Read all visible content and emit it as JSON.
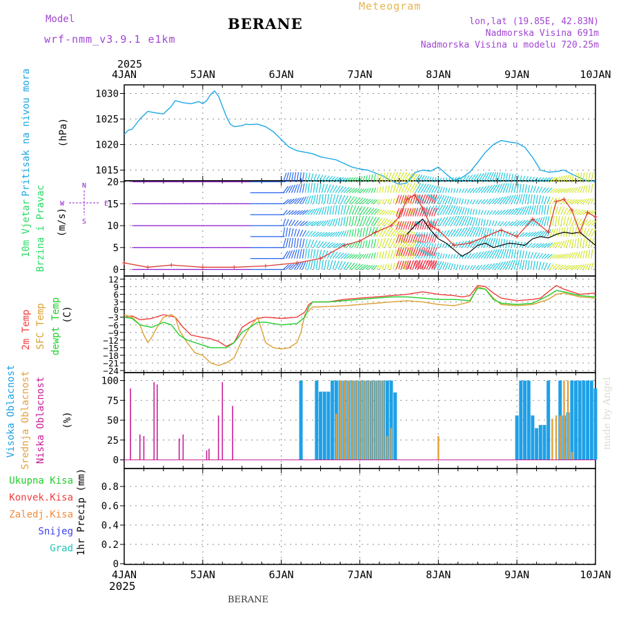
{
  "header": {
    "model_label": "Model",
    "model_name": "wrf-nmm_v3.9.1 e1km",
    "title": "BERANE",
    "product": "Meteogram",
    "location": "lon,lat (19.85E, 42.83N)",
    "elevation": "Nadmorska Visina 691m",
    "model_elevation": "Nadmorska Visina u modelu 720.25m",
    "year_top": "2025",
    "year_bottom": "2025",
    "footer_station": "BERANE",
    "credit": "made by Angel"
  },
  "colors": {
    "pressure": "#1ba8e6",
    "temp2m": "#f03c3c",
    "sfctemp": "#dca032",
    "dewpt": "#1ecd28",
    "cloud_high": "#1ea0e6",
    "cloud_mid": "#e6a03c",
    "cloud_low": "#c81e96",
    "wind_purple": "#8c1ed2",
    "wind_blue": "#2864f0",
    "wind_cyan": "#1ec8dc",
    "wind_green": "#28dc64",
    "wind_yellow": "#d2e628",
    "wind_red": "#f03c50"
  },
  "chart_data": {
    "type": "line",
    "x_axis": {
      "labels": [
        "4JAN",
        "5JAN",
        "6JAN",
        "7JAN",
        "8JAN",
        "9JAN",
        "10JAN"
      ],
      "range_days": [
        0,
        6
      ]
    },
    "panels": [
      {
        "id": "pressure",
        "ylabel_lines": [
          "Pritisak na nivou mora",
          "(hPa)"
        ],
        "ylim": [
          1012,
          1031
        ],
        "yticks": [
          1015,
          1020,
          1025,
          1030
        ],
        "series": [
          {
            "name": "Pritisak na nivou mora",
            "color": "#1ba8e6",
            "x": [
              0,
              0.05,
              0.1,
              0.2,
              0.3,
              0.4,
              0.5,
              0.6,
              0.65,
              0.75,
              0.85,
              0.95,
              1.0,
              1.05,
              1.1,
              1.15,
              1.2,
              1.25,
              1.3,
              1.35,
              1.4,
              1.45,
              1.5,
              1.55,
              1.6,
              1.7,
              1.8,
              1.9,
              2.0,
              2.1,
              2.2,
              2.3,
              2.4,
              2.5,
              2.6,
              2.7,
              2.8,
              2.9,
              3.0,
              3.1,
              3.2,
              3.3,
              3.4,
              3.5,
              3.6,
              3.7,
              3.8,
              3.9,
              4.0,
              4.1,
              4.2,
              4.3,
              4.4,
              4.5,
              4.6,
              4.7,
              4.8,
              4.9,
              5.0,
              5.1,
              5.2,
              5.3,
              5.4,
              5.5,
              5.6,
              5.7,
              5.8,
              5.9,
              5.95,
              6.0
            ],
            "y": [
              1022,
              1022.8,
              1023,
              1025,
              1026.5,
              1026.2,
              1026,
              1027.5,
              1028.6,
              1028.2,
              1028,
              1028.4,
              1028,
              1028.6,
              1029.8,
              1030.5,
              1029.5,
              1027.5,
              1025.5,
              1024,
              1023.5,
              1023.6,
              1023.7,
              1024,
              1023.9,
              1024,
              1023.5,
              1022.5,
              1021,
              1019.5,
              1018.8,
              1018.5,
              1018.2,
              1017.6,
              1017.3,
              1017,
              1016.3,
              1015.6,
              1015.2,
              1015,
              1014.4,
              1013.8,
              1012.9,
              1012.2,
              1012.5,
              1014.5,
              1015,
              1014.8,
              1015.6,
              1014.2,
              1013,
              1013.5,
              1014.6,
              1016.5,
              1018.5,
              1020,
              1020.8,
              1020.5,
              1020.3,
              1019.5,
              1017.5,
              1015,
              1014.6,
              1014.7,
              1015,
              1014.2,
              1013.5,
              1012.8,
              1012.8,
              1012.9
            ]
          }
        ]
      },
      {
        "id": "wind",
        "ylabel_lines": [
          "10m Vjetar",
          "Brzina i Pravac",
          "(m/s)"
        ],
        "compass": {
          "n": "N",
          "w": "W",
          "e": "E",
          "s": "S"
        },
        "ylim": [
          -1,
          20
        ],
        "yticks": [
          0,
          5,
          10,
          15,
          20
        ],
        "levels": [
          0,
          2.5,
          5,
          7.5,
          10,
          12.5,
          15,
          17.5,
          20
        ],
        "series": [
          {
            "name": "gust",
            "color": "#dc3c32",
            "x": [
              0,
              0.3,
              0.6,
              1.0,
              1.4,
              1.8,
              2.2,
              2.5,
              2.8,
              3.0,
              3.2,
              3.4,
              3.5,
              3.6,
              3.7,
              3.8,
              3.9,
              4.0,
              4.2,
              4.4,
              4.6,
              4.8,
              5.0,
              5.2,
              5.4,
              5.5,
              5.6,
              5.7,
              5.8,
              5.9,
              6.0
            ],
            "y": [
              1.5,
              0.5,
              1.0,
              0.5,
              0.5,
              0.8,
              1.5,
              2.5,
              5.5,
              6.5,
              8.5,
              10.0,
              12.0,
              16.0,
              17.0,
              14.0,
              10.0,
              9.0,
              5.5,
              6.0,
              7.5,
              9.0,
              7.5,
              11.5,
              8.5,
              15.5,
              16.0,
              13.5,
              8.5,
              13.0,
              12.0
            ]
          },
          {
            "name": "speed",
            "color": "#000000",
            "x": [
              3.6,
              3.7,
              3.8,
              3.9,
              4.0,
              4.1,
              4.2,
              4.3,
              4.4,
              4.5,
              4.6,
              4.7,
              4.8,
              4.9,
              5.0,
              5.1,
              5.2,
              5.3,
              5.4,
              5.5,
              5.6,
              5.7,
              5.8,
              5.9,
              6.0
            ],
            "y": [
              8.0,
              10.0,
              11.5,
              9.0,
              7.0,
              6.0,
              4.5,
              3.0,
              4.0,
              5.5,
              6.0,
              5.0,
              5.5,
              6.0,
              5.8,
              5.5,
              7.0,
              7.5,
              7.2,
              8.0,
              8.5,
              8.2,
              8.5,
              7.0,
              5.5
            ]
          }
        ]
      },
      {
        "id": "temperature",
        "ylabel_lines": [
          "2m Temp",
          "SFC Temp",
          "dewpt Temp",
          "(C)"
        ],
        "ylim": [
          -24,
          12
        ],
        "yticks": [
          -24,
          -21,
          -18,
          -15,
          -12,
          -9,
          -6,
          -3,
          0,
          3,
          6,
          9,
          12
        ],
        "series": [
          {
            "name": "2m Temp",
            "color": "#f03c3c",
            "x": [
              0,
              0.1,
              0.2,
              0.35,
              0.5,
              0.65,
              0.75,
              0.85,
              1.0,
              1.1,
              1.2,
              1.3,
              1.4,
              1.5,
              1.6,
              1.7,
              1.8,
              2.0,
              2.2,
              2.3,
              2.35,
              2.4,
              2.6,
              2.8,
              3.0,
              3.2,
              3.4,
              3.6,
              3.7,
              3.8,
              4.0,
              4.2,
              4.3,
              4.4,
              4.5,
              4.6,
              4.7,
              4.8,
              5.0,
              5.2,
              5.3,
              5.4,
              5.5,
              5.6,
              5.7,
              5.8,
              6.0
            ],
            "y": [
              -3,
              -2.5,
              -4,
              -3.5,
              -2,
              -3,
              -7,
              -10,
              -11,
              -11.5,
              -12.5,
              -14.5,
              -13,
              -7,
              -5,
              -3.5,
              -3,
              -3.5,
              -3,
              -1,
              2,
              3,
              3,
              4,
              4.5,
              5,
              5.5,
              6,
              6.5,
              7,
              6,
              5.5,
              5,
              5.5,
              9.5,
              9,
              6.5,
              4.5,
              3.5,
              4,
              4.5,
              7,
              9.5,
              8,
              7,
              6,
              6.5
            ]
          },
          {
            "name": "SFC Temp",
            "color": "#dca032",
            "x": [
              0,
              0.1,
              0.2,
              0.25,
              0.3,
              0.35,
              0.4,
              0.5,
              0.6,
              0.65,
              0.7,
              0.8,
              0.9,
              1.0,
              1.1,
              1.2,
              1.3,
              1.4,
              1.5,
              1.6,
              1.7,
              1.8,
              1.9,
              2.0,
              2.1,
              2.2,
              2.25,
              2.3,
              2.4,
              2.6,
              2.8,
              3.0,
              3.2,
              3.4,
              3.6,
              3.8,
              4.0,
              4.2,
              4.4,
              4.5,
              4.6,
              4.7,
              4.8,
              5.0,
              5.2,
              5.4,
              5.5,
              5.6,
              5.8,
              6.0
            ],
            "y": [
              -2,
              -3,
              -6,
              -10,
              -13,
              -11,
              -8,
              -3,
              -2,
              -3,
              -8,
              -13,
              -17,
              -18,
              -21,
              -22,
              -21,
              -19,
              -12,
              -7,
              -3,
              -13,
              -15,
              -15.5,
              -15,
              -13,
              -9,
              -2,
              1,
              1.2,
              1.5,
              2,
              2.5,
              3,
              3.5,
              3,
              2,
              1.5,
              3,
              9,
              8,
              4.5,
              2,
              1.5,
              2,
              4,
              6,
              6.5,
              5,
              4.5
            ]
          },
          {
            "name": "dewpt Temp",
            "color": "#1ecd28",
            "x": [
              0,
              0.1,
              0.2,
              0.35,
              0.5,
              0.6,
              0.7,
              0.8,
              0.9,
              1.0,
              1.1,
              1.2,
              1.3,
              1.4,
              1.5,
              1.6,
              1.7,
              1.8,
              2.0,
              2.2,
              2.3,
              2.35,
              2.4,
              2.6,
              2.8,
              3.0,
              3.2,
              3.4,
              3.6,
              3.8,
              4.0,
              4.2,
              4.4,
              4.5,
              4.6,
              4.7,
              4.8,
              5.0,
              5.2,
              5.4,
              5.5,
              5.6,
              5.8,
              6.0
            ],
            "y": [
              -3,
              -3.5,
              -6,
              -7,
              -5,
              -6,
              -10,
              -12,
              -13,
              -14,
              -15,
              -15,
              -15,
              -13,
              -9,
              -7,
              -5,
              -5,
              -6,
              -5.5,
              -3,
              1,
              3,
              3,
              3.5,
              4,
              4.5,
              5,
              5,
              4.5,
              4,
              4,
              3.5,
              8.5,
              8,
              4,
              2.5,
              2,
              2.5,
              5.5,
              7.5,
              7,
              5.5,
              5
            ]
          }
        ]
      },
      {
        "id": "cloud",
        "ylabel_lines": [
          "Visoka Oblacnost",
          "Srednja Oblacnost",
          "Niska Oblacnost",
          "(%)"
        ],
        "ylim": [
          0,
          100
        ],
        "yticks": [
          0,
          25,
          50,
          75,
          100
        ],
        "series": [
          {
            "name": "Visoka Oblacnost",
            "color": "#1ea0e6",
            "x": [
              2.25,
              2.45,
              2.5,
              2.55,
              2.6,
              2.65,
              2.7,
              2.75,
              2.8,
              2.85,
              2.9,
              2.95,
              3.0,
              3.05,
              3.1,
              3.15,
              3.2,
              3.25,
              3.3,
              3.35,
              3.4,
              3.45,
              5.0,
              5.05,
              5.1,
              5.15,
              5.2,
              5.25,
              5.3,
              5.35,
              5.4,
              5.55,
              5.6,
              5.65,
              5.7,
              5.75,
              5.8,
              5.85,
              5.9,
              5.95,
              6.0
            ],
            "y": [
              100,
              100,
              86,
              86,
              86,
              100,
              100,
              100,
              100,
              100,
              100,
              100,
              100,
              100,
              100,
              100,
              100,
              100,
              100,
              100,
              100,
              85,
              56,
              100,
              100,
              100,
              56,
              40,
              44,
              44,
              100,
              100,
              56,
              60,
              100,
              100,
              100,
              100,
              100,
              100,
              90
            ]
          },
          {
            "name": "Srednja Oblacnost",
            "color": "#e6a03c",
            "x": [
              2.7,
              2.75,
              2.8,
              2.85,
              2.9,
              2.95,
              3.0,
              3.05,
              3.1,
              3.15,
              3.2,
              3.25,
              3.3,
              3.35,
              3.4,
              4.0,
              5.45,
              5.5,
              5.55,
              5.6,
              5.65,
              5.7
            ],
            "y": [
              58,
              100,
              100,
              100,
              100,
              100,
              100,
              100,
              100,
              100,
              100,
              100,
              100,
              30,
              40,
              30,
              52,
              56,
              56,
              100,
              100,
              10
            ]
          },
          {
            "name": "Niska Oblacnost",
            "color": "#c81e96",
            "x": [
              0.08,
              0.2,
              0.25,
              0.38,
              0.42,
              0.7,
              0.75,
              1.05,
              1.08,
              1.2,
              1.25,
              1.38
            ],
            "y": [
              90,
              32,
              30,
              98,
              95,
              27,
              32,
              12,
              14,
              56,
              98,
              68
            ]
          }
        ]
      },
      {
        "id": "precip",
        "ylabel_lines": [
          "1hr Precip (mm)"
        ],
        "legend": [
          "Ukupna Kisa",
          "Konvek.Kisa",
          "Zaledj.Kisa",
          "Snijeg",
          "Grad"
        ],
        "legend_colors": [
          "#1ecd28",
          "#f03c3c",
          "#f08c3c",
          "#3c3cf0",
          "#1ec8b4"
        ],
        "ylim": [
          0,
          1
        ],
        "yticks": [
          0,
          0.2,
          0.4,
          0.6,
          0.8
        ],
        "tick_labels": [
          "0",
          "0.2",
          "0.4",
          "0.6",
          "0.8"
        ],
        "series": []
      }
    ]
  }
}
